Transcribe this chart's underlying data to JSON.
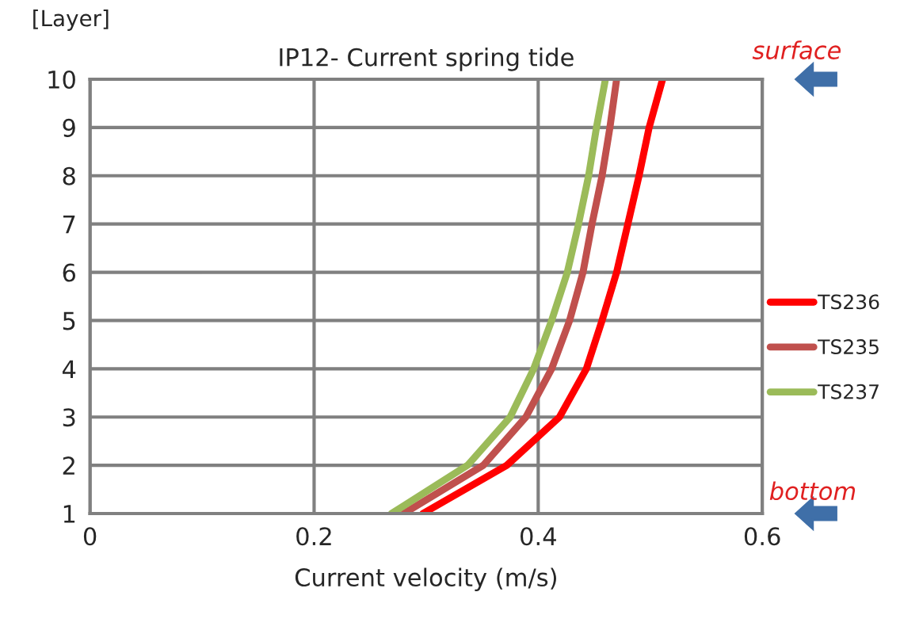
{
  "chart_data": {
    "type": "line",
    "title": "IP12- Current spring tide",
    "xlabel": "Current velocity (m/s)",
    "ylabel": "[Layer]",
    "xlim": [
      0,
      0.6
    ],
    "xticks": [
      0,
      0.2,
      0.4,
      0.6
    ],
    "ylim": [
      1,
      10
    ],
    "yticks": [
      1,
      2,
      3,
      4,
      5,
      6,
      7,
      8,
      9,
      10
    ],
    "grid": true,
    "legend": "right",
    "marker": "none",
    "line_style": "solid",
    "annotations": [
      "surface",
      "bottom"
    ],
    "series": [
      {
        "name": "TS236",
        "color": "#ff0000",
        "x": [
          0.297,
          0.372,
          0.419,
          0.443,
          0.457,
          0.47,
          0.48,
          0.49,
          0.499,
          0.511
        ],
        "values": [
          1,
          2,
          3,
          4,
          5,
          6,
          7,
          8,
          9,
          10
        ]
      },
      {
        "name": "TS235",
        "color": "#c0504d",
        "x": [
          0.28,
          0.351,
          0.389,
          0.412,
          0.428,
          0.44,
          0.448,
          0.457,
          0.464,
          0.47
        ],
        "values": [
          1,
          2,
          3,
          4,
          5,
          6,
          7,
          8,
          9,
          10
        ]
      },
      {
        "name": "TS237",
        "color": "#9bbb59",
        "x": [
          0.269,
          0.337,
          0.375,
          0.396,
          0.412,
          0.426,
          0.436,
          0.445,
          0.452,
          0.46
        ],
        "values": [
          1,
          2,
          3,
          4,
          5,
          6,
          7,
          8,
          9,
          10
        ]
      }
    ]
  }
}
